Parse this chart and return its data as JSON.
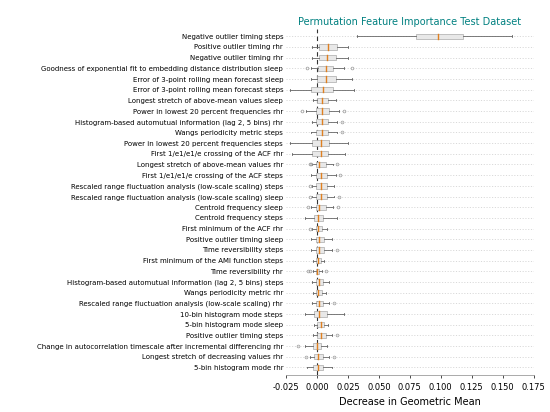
{
  "title": "Permutation Feature Importance Test Dataset",
  "xlabel": "Decrease in Geometric Mean",
  "xlim": [
    -0.025,
    0.175
  ],
  "xticks": [
    -0.025,
    0.0,
    0.025,
    0.05,
    0.075,
    0.1,
    0.125,
    0.15,
    0.175
  ],
  "xtick_labels": [
    "-0.025",
    "0.000",
    "0.025",
    "0.050",
    "0.075",
    "0.100",
    "0.125",
    "0.150",
    "0.175"
  ],
  "features": [
    "5-bin histogram mode rhr",
    "Longest stretch of decreasing values rhr",
    "Change in autocorrelation timescale after incremental differencing rhr",
    "Positive outlier timing steps",
    "5-bin histogram mode sleep",
    "10-bin histogram mode steps",
    "Rescaled range fluctuation analysis (low-scale scaling) rhr",
    "Wangs periodicity metric rhr",
    "Histogram-based automutual information (lag 2, 5 bins) steps",
    "Time reversibility rhr",
    "First minimum of the AMI function steps",
    "Time reversibility steps",
    "Positive outlier timing sleep",
    "First minimum of the ACF rhr",
    "Centroid frequency steps",
    "Centroid frequency sleep",
    "Rescaled range fluctuation analysis (low-scale scaling) sleep",
    "Rescaled range fluctuation analysis (low-scale scaling) steps",
    "First 1/e1/e1/e crossing of the ACF steps",
    "Longest stretch of above-mean values rhr",
    "First 1/e1/e1/e crossing of the ACF rhr",
    "Power in lowest 20 percent frequencies steps",
    "Wangs periodicity metric steps",
    "Histogram-based automutual information (lag 2, 5 bins) rhr",
    "Power in lowest 20 percent frequencies rhr",
    "Longest stretch of above-mean values sleep",
    "Error of 3-point rolling mean forecast steps",
    "Error of 3-point rolling mean forecast sleep",
    "Goodness of exponential fit to embedding distance distribution sleep",
    "Negative outlier timing rhr",
    "Positive outlier timing rhr",
    "Negative outlier timing steps"
  ],
  "boxes": [
    {
      "whislo": -0.008,
      "q1": -0.003,
      "med": 0.001,
      "q3": 0.005,
      "whishi": 0.012,
      "fliers_low": [],
      "fliers_high": []
    },
    {
      "whislo": -0.006,
      "q1": -0.002,
      "med": 0.001,
      "q3": 0.005,
      "whishi": 0.01,
      "fliers_low": [
        -0.009
      ],
      "fliers_high": [
        0.014
      ]
    },
    {
      "whislo": -0.01,
      "q1": -0.003,
      "med": 0.0,
      "q3": 0.003,
      "whishi": 0.008,
      "fliers_low": [
        -0.015
      ],
      "fliers_high": []
    },
    {
      "whislo": -0.003,
      "q1": 0.0,
      "med": 0.003,
      "q3": 0.007,
      "whishi": 0.012,
      "fliers_low": [],
      "fliers_high": [
        0.016
      ]
    },
    {
      "whislo": -0.002,
      "q1": 0.0,
      "med": 0.003,
      "q3": 0.006,
      "whishi": 0.009,
      "fliers_low": [],
      "fliers_high": []
    },
    {
      "whislo": -0.01,
      "q1": -0.002,
      "med": 0.002,
      "q3": 0.008,
      "whishi": 0.022,
      "fliers_low": [],
      "fliers_high": []
    },
    {
      "whislo": -0.004,
      "q1": -0.001,
      "med": 0.002,
      "q3": 0.005,
      "whishi": 0.01,
      "fliers_low": [],
      "fliers_high": [
        0.014
      ]
    },
    {
      "whislo": -0.003,
      "q1": -0.001,
      "med": 0.001,
      "q3": 0.004,
      "whishi": 0.007,
      "fliers_low": [],
      "fliers_high": []
    },
    {
      "whislo": -0.004,
      "q1": -0.001,
      "med": 0.002,
      "q3": 0.005,
      "whishi": 0.01,
      "fliers_low": [],
      "fliers_high": []
    },
    {
      "whislo": -0.003,
      "q1": -0.001,
      "med": 0.0,
      "q3": 0.002,
      "whishi": 0.004,
      "fliers_low": [
        -0.006,
        -0.007
      ],
      "fliers_high": [
        0.007
      ]
    },
    {
      "whislo": -0.003,
      "q1": -0.001,
      "med": 0.001,
      "q3": 0.003,
      "whishi": 0.006,
      "fliers_low": [],
      "fliers_high": []
    },
    {
      "whislo": -0.005,
      "q1": -0.001,
      "med": 0.002,
      "q3": 0.006,
      "whishi": 0.012,
      "fliers_low": [],
      "fliers_high": [
        0.016
      ]
    },
    {
      "whislo": -0.005,
      "q1": -0.001,
      "med": 0.002,
      "q3": 0.006,
      "whishi": 0.012,
      "fliers_low": [],
      "fliers_high": []
    },
    {
      "whislo": -0.004,
      "q1": -0.001,
      "med": 0.001,
      "q3": 0.004,
      "whishi": 0.008,
      "fliers_low": [
        -0.006
      ],
      "fliers_high": []
    },
    {
      "whislo": -0.01,
      "q1": -0.002,
      "med": 0.001,
      "q3": 0.005,
      "whishi": 0.016,
      "fliers_low": [],
      "fliers_high": []
    },
    {
      "whislo": -0.005,
      "q1": -0.001,
      "med": 0.002,
      "q3": 0.007,
      "whishi": 0.013,
      "fliers_low": [
        -0.007
      ],
      "fliers_high": [
        0.017
      ]
    },
    {
      "whislo": -0.004,
      "q1": -0.001,
      "med": 0.003,
      "q3": 0.008,
      "whishi": 0.014,
      "fliers_low": [
        -0.006
      ],
      "fliers_high": [
        0.018
      ]
    },
    {
      "whislo": -0.004,
      "q1": -0.001,
      "med": 0.003,
      "q3": 0.008,
      "whishi": 0.014,
      "fliers_low": [
        -0.006
      ],
      "fliers_high": []
    },
    {
      "whislo": -0.005,
      "q1": -0.001,
      "med": 0.003,
      "q3": 0.008,
      "whishi": 0.015,
      "fliers_low": [],
      "fliers_high": [
        0.019
      ]
    },
    {
      "whislo": -0.004,
      "q1": -0.001,
      "med": 0.002,
      "q3": 0.007,
      "whishi": 0.013,
      "fliers_low": [
        -0.005,
        -0.006
      ],
      "fliers_high": [
        0.016
      ]
    },
    {
      "whislo": -0.02,
      "q1": -0.004,
      "med": 0.003,
      "q3": 0.009,
      "whishi": 0.023,
      "fliers_low": [],
      "fliers_high": []
    },
    {
      "whislo": -0.022,
      "q1": -0.004,
      "med": 0.003,
      "q3": 0.01,
      "whishi": 0.025,
      "fliers_low": [
        -0.03
      ],
      "fliers_high": []
    },
    {
      "whislo": -0.005,
      "q1": -0.001,
      "med": 0.004,
      "q3": 0.009,
      "whishi": 0.016,
      "fliers_low": [],
      "fliers_high": [
        0.02
      ]
    },
    {
      "whislo": -0.004,
      "q1": -0.001,
      "med": 0.004,
      "q3": 0.009,
      "whishi": 0.016,
      "fliers_low": [],
      "fliers_high": [
        0.02
      ]
    },
    {
      "whislo": -0.009,
      "q1": -0.001,
      "med": 0.004,
      "q3": 0.01,
      "whishi": 0.018,
      "fliers_low": [
        -0.012
      ],
      "fliers_high": [
        0.022
      ]
    },
    {
      "whislo": -0.003,
      "q1": 0.0,
      "med": 0.004,
      "q3": 0.009,
      "whishi": 0.015,
      "fliers_low": [],
      "fliers_high": []
    },
    {
      "whislo": -0.022,
      "q1": -0.005,
      "med": 0.005,
      "q3": 0.013,
      "whishi": 0.03,
      "fliers_low": [
        -0.03
      ],
      "fliers_high": []
    },
    {
      "whislo": -0.005,
      "q1": 0.0,
      "med": 0.007,
      "q3": 0.015,
      "whishi": 0.028,
      "fliers_low": [],
      "fliers_high": []
    },
    {
      "whislo": -0.005,
      "q1": 0.001,
      "med": 0.007,
      "q3": 0.013,
      "whishi": 0.022,
      "fliers_low": [
        -0.008
      ],
      "fliers_high": [
        0.028
      ]
    },
    {
      "whislo": -0.004,
      "q1": 0.002,
      "med": 0.008,
      "q3": 0.015,
      "whishi": 0.025,
      "fliers_low": [],
      "fliers_high": []
    },
    {
      "whislo": -0.004,
      "q1": 0.002,
      "med": 0.009,
      "q3": 0.016,
      "whishi": 0.025,
      "fliers_low": [],
      "fliers_high": []
    },
    {
      "whislo": 0.032,
      "q1": 0.08,
      "med": 0.098,
      "q3": 0.118,
      "whishi": 0.158,
      "fliers_low": [],
      "fliers_high": []
    }
  ],
  "box_color": "#e8e8e8",
  "median_color": "#e08020",
  "whisker_color": "#666666",
  "flier_color": "#999999",
  "vline_color": "#333333",
  "vline_x": 0.0,
  "background_color": "#ffffff",
  "grid_color": "#bbbbbb",
  "title_color": "#008080",
  "label_fontsize": 5.0,
  "title_fontsize": 7.0,
  "xlabel_fontsize": 7.0,
  "xtick_fontsize": 6.0
}
